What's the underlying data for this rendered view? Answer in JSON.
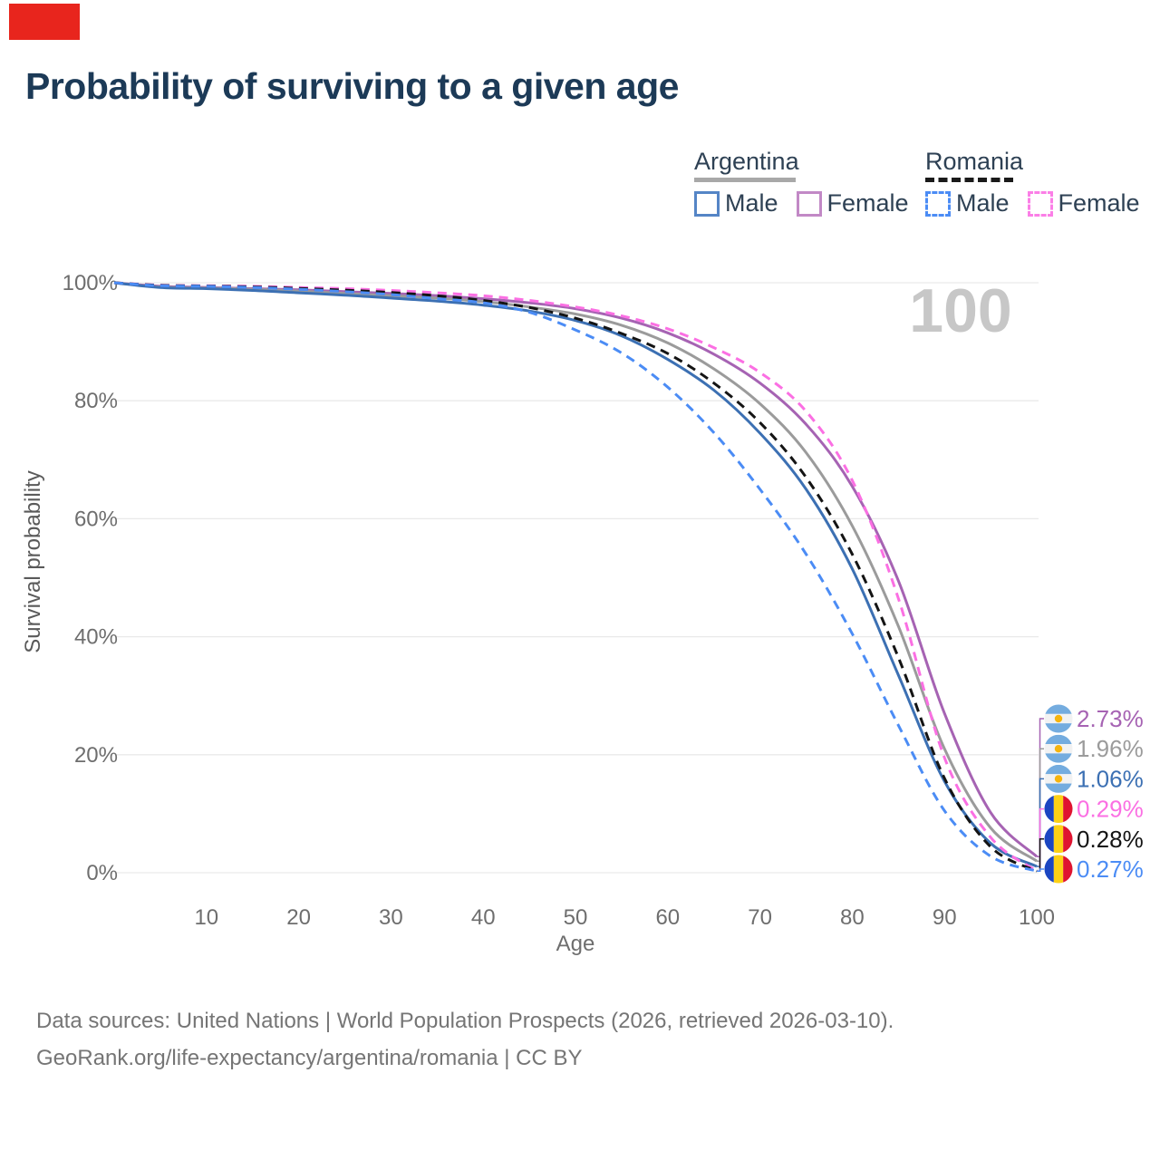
{
  "header": {
    "title": "Probability of surviving to a given age"
  },
  "legend": {
    "groups": [
      {
        "label": "Argentina",
        "underline": {
          "style": "solid",
          "color": "#a8a8a8"
        },
        "items": [
          {
            "label": "Male",
            "style": "solid",
            "color": "#5585c6"
          },
          {
            "label": "Female",
            "style": "solid",
            "color": "#c289c6"
          }
        ]
      },
      {
        "label": "Romania",
        "underline": {
          "style": "dashed",
          "color": "#1a1a1a"
        },
        "items": [
          {
            "label": "Male",
            "style": "dashed",
            "color": "#4b8cf5"
          },
          {
            "label": "Female",
            "style": "dashed",
            "color": "#fb7fe7"
          }
        ]
      }
    ]
  },
  "chart_data": {
    "type": "line",
    "title": "Probability of surviving to a given age",
    "xlabel": "Age",
    "ylabel": "Survival probability",
    "xlim": [
      0,
      100
    ],
    "ylim": [
      0,
      100
    ],
    "grid": "horizontal",
    "legend_position": "top-right",
    "watermark": "100",
    "x_ticks": [
      10,
      20,
      30,
      40,
      50,
      60,
      70,
      80,
      90,
      100
    ],
    "y_ticks": [
      {
        "value": 0,
        "label": "0%"
      },
      {
        "value": 20,
        "label": "20%"
      },
      {
        "value": 40,
        "label": "40%"
      },
      {
        "value": 60,
        "label": "60%"
      },
      {
        "value": 80,
        "label": "80%"
      },
      {
        "value": 100,
        "label": "100%"
      }
    ],
    "ages": [
      0,
      5,
      10,
      15,
      20,
      25,
      30,
      35,
      40,
      45,
      50,
      55,
      60,
      65,
      70,
      75,
      80,
      85,
      90,
      95,
      100
    ],
    "series": [
      {
        "name": "Argentina Female",
        "country": "Argentina",
        "sex": "Female",
        "style": "solid",
        "color": "#a663b3",
        "flag": "argentina",
        "end_label": "2.73%",
        "values": [
          100,
          99.4,
          99.2,
          99.0,
          98.8,
          98.5,
          98.2,
          97.8,
          97.3,
          96.6,
          95.6,
          94.0,
          91.5,
          87.9,
          83.0,
          76.0,
          65.5,
          49.5,
          27.0,
          10.2,
          2.73
        ]
      },
      {
        "name": "Argentina Both sexes",
        "country": "Argentina",
        "sex": "Both",
        "style": "solid",
        "color": "#9b9b9b",
        "flag": "argentina",
        "end_label": "1.96%",
        "values": [
          100,
          99.3,
          99.1,
          98.9,
          98.6,
          98.2,
          97.8,
          97.4,
          96.8,
          95.9,
          94.7,
          92.8,
          89.8,
          85.4,
          79.5,
          71.2,
          58.8,
          41.8,
          21.0,
          7.6,
          1.96
        ]
      },
      {
        "name": "Argentina Male",
        "country": "Argentina",
        "sex": "Male",
        "style": "solid",
        "color": "#3c70b3",
        "flag": "argentina",
        "end_label": "1.06%",
        "values": [
          100,
          99.2,
          99.0,
          98.7,
          98.3,
          97.9,
          97.4,
          96.9,
          96.2,
          95.2,
          93.6,
          91.0,
          87.0,
          81.8,
          74.5,
          65.0,
          51.5,
          33.5,
          15.5,
          5.0,
          1.06
        ]
      },
      {
        "name": "Romania Female",
        "country": "Romania",
        "sex": "Female",
        "style": "dashed",
        "color": "#fb6fe3",
        "flag": "romania",
        "end_label": "0.29%",
        "values": [
          100,
          99.6,
          99.5,
          99.4,
          99.2,
          99.0,
          98.7,
          98.3,
          97.8,
          97.0,
          95.9,
          94.4,
          92.2,
          89.0,
          84.8,
          78.2,
          66.5,
          46.5,
          19.5,
          6.0,
          0.29
        ]
      },
      {
        "name": "Romania Both sexes",
        "country": "Romania",
        "sex": "Both",
        "style": "dashed",
        "color": "#141414",
        "flag": "romania",
        "end_label": "0.28%",
        "values": [
          100,
          99.55,
          99.45,
          99.3,
          99.05,
          98.75,
          98.35,
          97.8,
          97.0,
          95.8,
          94.0,
          91.4,
          88.0,
          83.0,
          76.3,
          67.0,
          54.0,
          36.5,
          16.0,
          4.4,
          0.28
        ]
      },
      {
        "name": "Romania Male",
        "country": "Romania",
        "sex": "Male",
        "style": "dashed",
        "color": "#4b8cf5",
        "flag": "romania",
        "end_label": "0.27%",
        "values": [
          100,
          99.5,
          99.4,
          99.2,
          98.9,
          98.5,
          98.0,
          97.3,
          96.6,
          95.0,
          92.0,
          88.1,
          82.3,
          74.6,
          65.0,
          54.0,
          40.5,
          25.0,
          10.5,
          2.8,
          0.27
        ]
      }
    ]
  },
  "footer": {
    "line1": "Data sources: United Nations | World Population Prospects (2026, retrieved 2026-03-10).",
    "line2": "GeoRank.org/life-expectancy/argentina/romania | CC BY"
  }
}
